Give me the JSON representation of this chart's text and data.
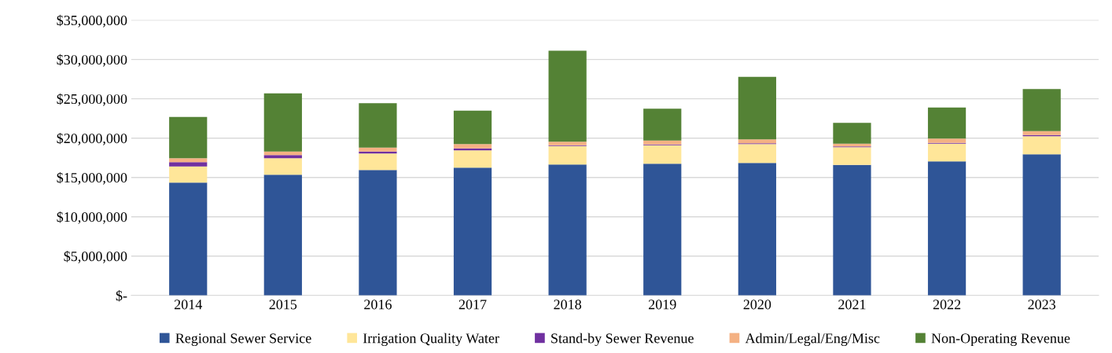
{
  "chart_data": {
    "type": "bar",
    "stacked": true,
    "categories": [
      "2014",
      "2015",
      "2016",
      "2017",
      "2018",
      "2019",
      "2020",
      "2021",
      "2022",
      "2023"
    ],
    "series": [
      {
        "name": "Regional Sewer Service",
        "color": "#2f5597",
        "values": [
          14350000,
          15350000,
          15950000,
          16250000,
          16650000,
          16750000,
          16850000,
          16600000,
          17050000,
          17950000
        ]
      },
      {
        "name": "Irrigation Quality Water",
        "color": "#ffe699",
        "values": [
          2050000,
          2100000,
          2100000,
          2200000,
          2350000,
          2350000,
          2400000,
          2250000,
          2250000,
          2300000
        ]
      },
      {
        "name": "Stand-by Sewer Revenue",
        "color": "#7030a0",
        "values": [
          550000,
          400000,
          250000,
          250000,
          100000,
          100000,
          100000,
          100000,
          100000,
          150000
        ]
      },
      {
        "name": "Admin/Legal/Eng/Misc",
        "color": "#f4b183",
        "values": [
          500000,
          450000,
          500000,
          550000,
          450000,
          500000,
          500000,
          350000,
          550000,
          500000
        ]
      },
      {
        "name": "Non-Operating Revenue",
        "color": "#548235",
        "values": [
          5250000,
          7400000,
          5650000,
          4250000,
          11550000,
          4050000,
          7950000,
          2650000,
          3950000,
          5350000
        ]
      }
    ],
    "ylim": [
      0,
      35000000
    ],
    "yticks": [
      {
        "value": 0,
        "label": "$-"
      },
      {
        "value": 5000000,
        "label": "$5,000,000"
      },
      {
        "value": 10000000,
        "label": "$10,000,000"
      },
      {
        "value": 15000000,
        "label": "$15,000,000"
      },
      {
        "value": 20000000,
        "label": "$20,000,000"
      },
      {
        "value": 25000000,
        "label": "$25,000,000"
      },
      {
        "value": 30000000,
        "label": "$30,000,000"
      },
      {
        "value": 35000000,
        "label": "$35,000,000"
      }
    ],
    "grid": "y",
    "legend": "bottom"
  }
}
